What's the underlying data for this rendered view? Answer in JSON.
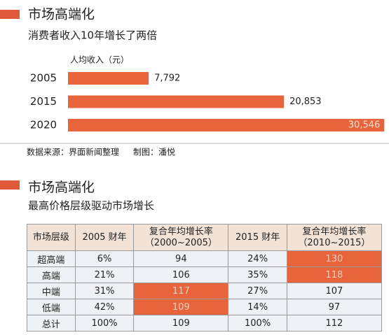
{
  "chart_data": {
    "type": "bar",
    "orientation": "horizontal",
    "title": "市场高端化",
    "subtitle": "消费者收入10年增长了两倍",
    "xlabel": "人均收入（元）",
    "categories": [
      "2005",
      "2015",
      "2020"
    ],
    "values": [
      7792,
      20853,
      30546
    ],
    "value_labels": [
      "7,792",
      "20,853",
      "30,546"
    ],
    "color": "#e8643c",
    "xlim": [
      0,
      31000
    ],
    "source": "数据来源：界面新闻整理",
    "credit": "制图：潘悦"
  },
  "section2": {
    "title": "市场高端化",
    "subtitle": "最高价格层级驱动市场增长",
    "table": {
      "header": [
        "市场层级",
        "2005 财年",
        "复合年均增长率\n（2000~2005）",
        "2015 财年",
        "复合年均增长率\n（2010~2015）"
      ],
      "rows": [
        [
          "超高端",
          "6%",
          "94",
          "24%",
          "130"
        ],
        [
          "高端",
          "21%",
          "106",
          "35%",
          "118"
        ],
        [
          "中端",
          "31%",
          "117",
          "27%",
          "107"
        ],
        [
          "低端",
          "42%",
          "109",
          "14%",
          "97"
        ],
        [
          "总计",
          "100%",
          "109",
          "100%",
          "112"
        ]
      ],
      "highlighted": [
        [
          0,
          4
        ],
        [
          1,
          4
        ],
        [
          2,
          2
        ],
        [
          3,
          2
        ]
      ],
      "highlight_color": "#e8643c"
    }
  }
}
